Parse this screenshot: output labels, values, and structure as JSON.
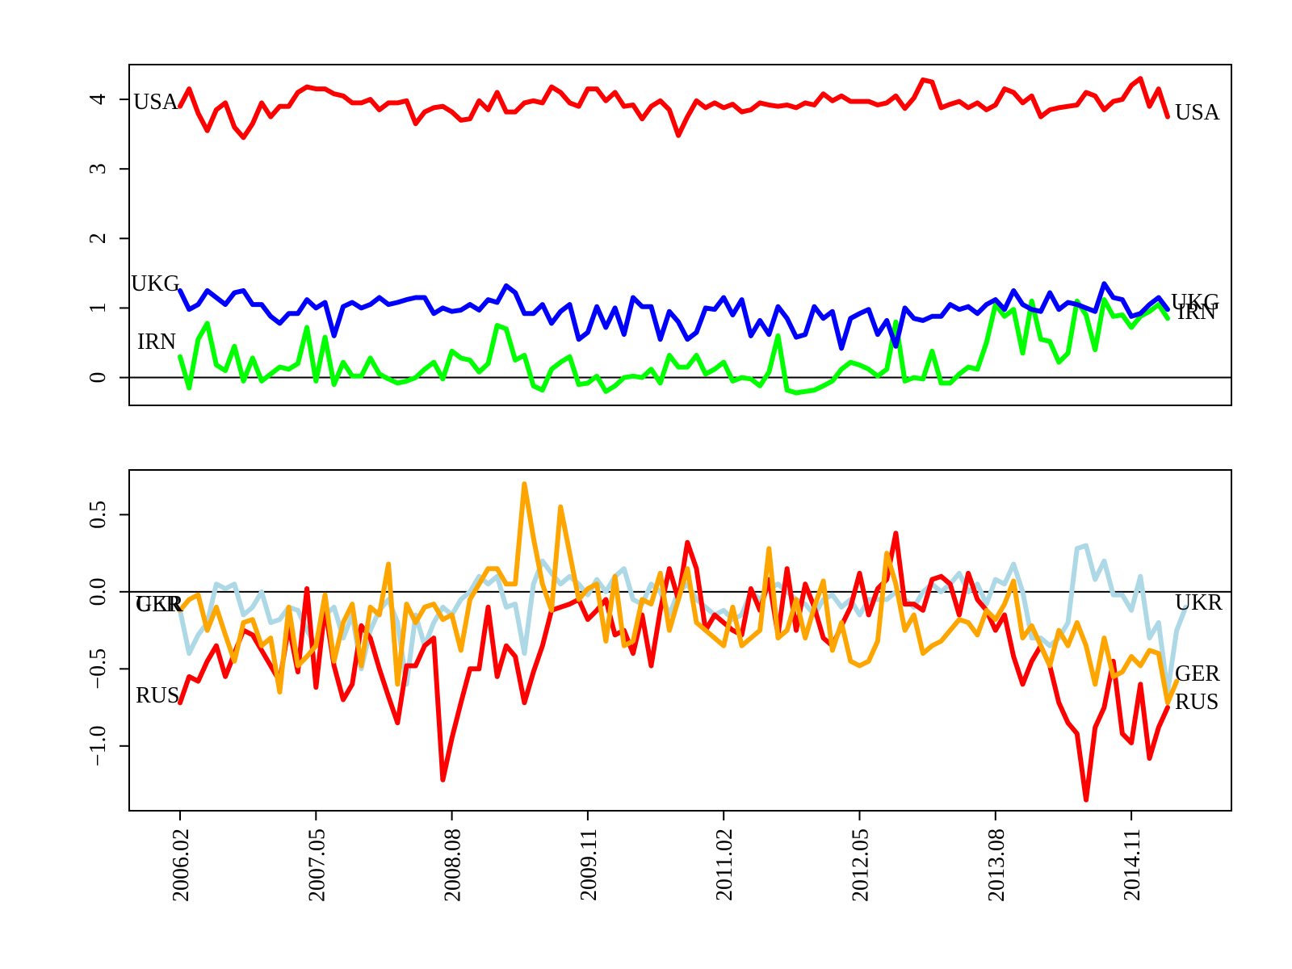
{
  "chart_data": [
    {
      "type": "line",
      "panel": "top",
      "title": "",
      "xlabel": "",
      "ylabel": "",
      "ylim": [
        -0.4,
        4.5
      ],
      "yticks": [
        0,
        1,
        2,
        3,
        4
      ],
      "ytick_labels": [
        "0",
        "1",
        "2",
        "3",
        "4"
      ],
      "hline": 0,
      "series": [
        {
          "name": "USA",
          "label_left": "USA",
          "label_right": "USA",
          "color": "#ff0000",
          "values": [
            3.9,
            4.15,
            3.8,
            3.55,
            3.85,
            3.95,
            3.6,
            3.45,
            3.65,
            3.95,
            3.75,
            3.9,
            3.9,
            4.1,
            4.18,
            4.15,
            4.15,
            4.08,
            4.05,
            3.95,
            3.95,
            4.0,
            3.85,
            3.95,
            3.95,
            3.98,
            3.65,
            3.82,
            3.88,
            3.9,
            3.82,
            3.7,
            3.72,
            3.98,
            3.85,
            4.1,
            3.82,
            3.82,
            3.95,
            3.98,
            3.95,
            4.18,
            4.1,
            3.95,
            3.9,
            4.15,
            4.15,
            3.98,
            4.1,
            3.9,
            3.92,
            3.72,
            3.9,
            3.98,
            3.85,
            3.48,
            3.75,
            3.98,
            3.88,
            3.95,
            3.88,
            3.93,
            3.82,
            3.85,
            3.95,
            3.92,
            3.9,
            3.92,
            3.88,
            3.95,
            3.92,
            4.08,
            3.98,
            4.05,
            3.97,
            3.97,
            3.97,
            3.92,
            3.95,
            4.05,
            3.87,
            4.02,
            4.28,
            4.25,
            3.88,
            3.93,
            3.97,
            3.88,
            3.95,
            3.85,
            3.92,
            4.15,
            4.1,
            3.95,
            4.05,
            3.75,
            3.85,
            3.88,
            3.9,
            3.92,
            4.1,
            4.05,
            3.85,
            3.97,
            4.0,
            4.2,
            4.3,
            3.9,
            4.15,
            3.75
          ]
        },
        {
          "name": "UKG",
          "label_left": "UKG",
          "label_right": "UKG",
          "color": "#0000ff",
          "values": [
            1.25,
            0.98,
            1.05,
            1.25,
            1.15,
            1.05,
            1.22,
            1.25,
            1.05,
            1.05,
            0.88,
            0.78,
            0.92,
            0.92,
            1.12,
            1.0,
            1.08,
            0.6,
            1.02,
            1.08,
            1.0,
            1.05,
            1.15,
            1.05,
            1.08,
            1.12,
            1.15,
            1.15,
            0.92,
            1.0,
            0.95,
            0.97,
            1.05,
            0.97,
            1.12,
            1.08,
            1.32,
            1.22,
            0.92,
            0.92,
            1.05,
            0.78,
            0.95,
            1.05,
            0.55,
            0.65,
            1.02,
            0.72,
            1.0,
            0.62,
            1.15,
            1.02,
            1.02,
            0.55,
            0.95,
            0.8,
            0.55,
            0.65,
            1.0,
            0.98,
            1.15,
            0.9,
            1.12,
            0.6,
            0.82,
            0.62,
            1.02,
            0.85,
            0.58,
            0.62,
            1.02,
            0.85,
            0.95,
            0.42,
            0.85,
            0.92,
            0.98,
            0.62,
            0.82,
            0.45,
            1.0,
            0.85,
            0.82,
            0.88,
            0.88,
            1.05,
            0.98,
            1.02,
            0.92,
            1.05,
            1.12,
            0.98,
            1.25,
            1.05,
            0.98,
            0.95,
            1.22,
            0.98,
            1.08,
            1.05,
            1.0,
            0.95,
            1.35,
            1.15,
            1.12,
            0.88,
            0.92,
            1.05,
            1.15,
            0.98
          ]
        },
        {
          "name": "IRN",
          "label_left": "IRN",
          "label_right": "IRN",
          "color": "#00ff00",
          "values": [
            0.3,
            -0.15,
            0.55,
            0.78,
            0.18,
            0.1,
            0.45,
            -0.05,
            0.28,
            -0.05,
            0.05,
            0.15,
            0.12,
            0.2,
            0.72,
            -0.05,
            0.58,
            -0.1,
            0.22,
            0.02,
            0.02,
            0.28,
            0.05,
            -0.02,
            -0.08,
            -0.05,
            0.0,
            0.12,
            0.22,
            -0.02,
            0.38,
            0.28,
            0.25,
            0.08,
            0.2,
            0.75,
            0.7,
            0.25,
            0.32,
            -0.12,
            -0.18,
            0.12,
            0.22,
            0.3,
            -0.1,
            -0.08,
            0.02,
            -0.2,
            -0.12,
            0.0,
            0.02,
            0.0,
            0.12,
            -0.08,
            0.32,
            0.15,
            0.15,
            0.32,
            0.05,
            0.12,
            0.22,
            -0.05,
            0.0,
            -0.02,
            -0.12,
            0.08,
            0.6,
            -0.18,
            -0.22,
            -0.2,
            -0.18,
            -0.12,
            -0.05,
            0.12,
            0.22,
            0.18,
            0.12,
            0.02,
            0.12,
            0.8,
            -0.05,
            0.0,
            -0.02,
            0.38,
            -0.08,
            -0.08,
            0.05,
            0.15,
            0.12,
            0.5,
            1.05,
            0.88,
            0.98,
            0.35,
            1.1,
            0.55,
            0.52,
            0.22,
            0.35,
            1.1,
            0.9,
            0.4,
            1.12,
            0.88,
            0.9,
            0.72,
            0.88,
            0.95,
            1.05,
            0.85
          ]
        }
      ]
    },
    {
      "type": "line",
      "panel": "bottom",
      "title": "",
      "xlabel": "",
      "ylabel": "",
      "ylim": [
        -1.42,
        0.79
      ],
      "yticks": [
        -1.0,
        -0.5,
        0.0,
        0.5
      ],
      "ytick_labels": [
        "−1.0",
        "−0.5",
        "0.0",
        "0.5"
      ],
      "hline": 0,
      "xtick_positions": [
        0,
        15,
        30,
        45,
        60,
        75,
        90,
        105
      ],
      "xtick_labels": [
        "2006.02",
        "2007.05",
        "2008.08",
        "2009.11",
        "2011.02",
        "2012.05",
        "2013.08",
        "2014.11"
      ],
      "series": [
        {
          "name": "RUS",
          "label_left": "RUS",
          "label_right": "RUS",
          "color": "#ff0000",
          "values": [
            -0.72,
            -0.55,
            -0.58,
            -0.45,
            -0.35,
            -0.55,
            -0.4,
            -0.25,
            -0.28,
            -0.38,
            -0.48,
            -0.58,
            -0.22,
            -0.52,
            0.02,
            -0.62,
            -0.1,
            -0.48,
            -0.7,
            -0.6,
            -0.22,
            -0.3,
            -0.5,
            -0.68,
            -0.85,
            -0.48,
            -0.48,
            -0.35,
            -0.3,
            -1.22,
            -0.95,
            -0.72,
            -0.5,
            -0.5,
            -0.1,
            -0.55,
            -0.35,
            -0.42,
            -0.72,
            -0.52,
            -0.35,
            -0.12,
            -0.1,
            -0.08,
            -0.05,
            -0.18,
            -0.12,
            -0.05,
            -0.28,
            -0.25,
            -0.4,
            -0.15,
            -0.48,
            -0.12,
            0.15,
            -0.05,
            0.32,
            0.15,
            -0.25,
            -0.15,
            -0.2,
            -0.25,
            -0.28,
            0.02,
            -0.12,
            0.08,
            -0.28,
            0.15,
            -0.25,
            0.05,
            -0.1,
            -0.3,
            -0.35,
            -0.22,
            -0.1,
            0.12,
            -0.15,
            0.02,
            0.08,
            0.38,
            -0.08,
            -0.08,
            -0.12,
            0.08,
            0.1,
            0.05,
            -0.15,
            0.12,
            -0.05,
            -0.12,
            -0.25,
            -0.15,
            -0.42,
            -0.6,
            -0.45,
            -0.35,
            -0.48,
            -0.72,
            -0.85,
            -0.92,
            -1.35,
            -0.88,
            -0.75,
            -0.45,
            -0.92,
            -0.98,
            -0.6,
            -1.08,
            -0.88,
            -0.75
          ]
        },
        {
          "name": "UKR",
          "label_left": "UKR",
          "label_right": "UKR",
          "color": "#add8e6",
          "values": [
            -0.12,
            -0.4,
            -0.28,
            -0.2,
            0.05,
            0.02,
            0.05,
            -0.15,
            -0.1,
            0.0,
            -0.2,
            -0.18,
            -0.1,
            -0.12,
            -0.25,
            -0.35,
            -0.15,
            -0.1,
            -0.3,
            -0.15,
            -0.5,
            -0.25,
            -0.12,
            -0.05,
            -0.2,
            -0.6,
            -0.15,
            -0.35,
            -0.2,
            -0.1,
            -0.15,
            -0.05,
            0.0,
            0.1,
            0.05,
            0.1,
            -0.1,
            -0.08,
            -0.4,
            0.05,
            0.2,
            0.12,
            0.05,
            0.1,
            0.05,
            -0.02,
            0.08,
            0.0,
            0.1,
            0.15,
            -0.05,
            -0.08,
            0.05,
            0.0,
            -0.15,
            0.0,
            0.05,
            -0.05,
            -0.1,
            -0.15,
            -0.12,
            -0.18,
            -0.15,
            0.0,
            -0.05,
            0.02,
            0.05,
            0.0,
            -0.05,
            -0.08,
            -0.15,
            -0.05,
            -0.02,
            -0.1,
            -0.05,
            -0.15,
            -0.05,
            -0.05,
            -0.05,
            0.0,
            -0.05,
            -0.1,
            0.0,
            0.05,
            0.0,
            0.05,
            0.12,
            0.0,
            0.05,
            -0.08,
            0.08,
            0.05,
            0.18,
            0.0,
            -0.3,
            -0.3,
            -0.35,
            -0.3,
            -0.2,
            0.28,
            0.3,
            0.08,
            0.2,
            -0.02,
            -0.02,
            -0.12,
            0.1,
            -0.3,
            -0.2,
            -0.65,
            -0.25,
            -0.1
          ]
        },
        {
          "name": "GER",
          "label_left": "GER",
          "label_right": "GER",
          "color": "#ffa500",
          "values": [
            -0.12,
            -0.05,
            -0.02,
            -0.25,
            -0.1,
            -0.28,
            -0.45,
            -0.2,
            -0.18,
            -0.35,
            -0.3,
            -0.65,
            -0.1,
            -0.48,
            -0.42,
            -0.35,
            -0.02,
            -0.45,
            -0.2,
            -0.08,
            -0.48,
            -0.1,
            -0.15,
            0.18,
            -0.6,
            -0.08,
            -0.2,
            -0.1,
            -0.08,
            -0.18,
            -0.15,
            -0.38,
            -0.05,
            0.05,
            0.15,
            0.15,
            0.05,
            0.05,
            0.7,
            0.35,
            0.05,
            -0.12,
            0.55,
            0.25,
            -0.05,
            0.02,
            0.05,
            -0.32,
            0.1,
            -0.35,
            -0.32,
            -0.05,
            -0.08,
            0.12,
            -0.25,
            -0.05,
            0.15,
            -0.2,
            -0.25,
            -0.3,
            -0.35,
            -0.1,
            -0.35,
            -0.3,
            -0.25,
            0.28,
            -0.3,
            -0.25,
            -0.05,
            -0.3,
            -0.1,
            0.07,
            -0.38,
            -0.2,
            -0.45,
            -0.48,
            -0.45,
            -0.32,
            0.25,
            0.05,
            -0.25,
            -0.15,
            -0.4,
            -0.35,
            -0.32,
            -0.25,
            -0.18,
            -0.2,
            -0.28,
            -0.12,
            -0.18,
            -0.08,
            0.07,
            -0.3,
            -0.22,
            -0.35,
            -0.48,
            -0.25,
            -0.35,
            -0.2,
            -0.35,
            -0.6,
            -0.3,
            -0.55,
            -0.52,
            -0.42,
            -0.48,
            -0.38,
            -0.4,
            -0.72,
            -0.58
          ]
        }
      ]
    }
  ]
}
